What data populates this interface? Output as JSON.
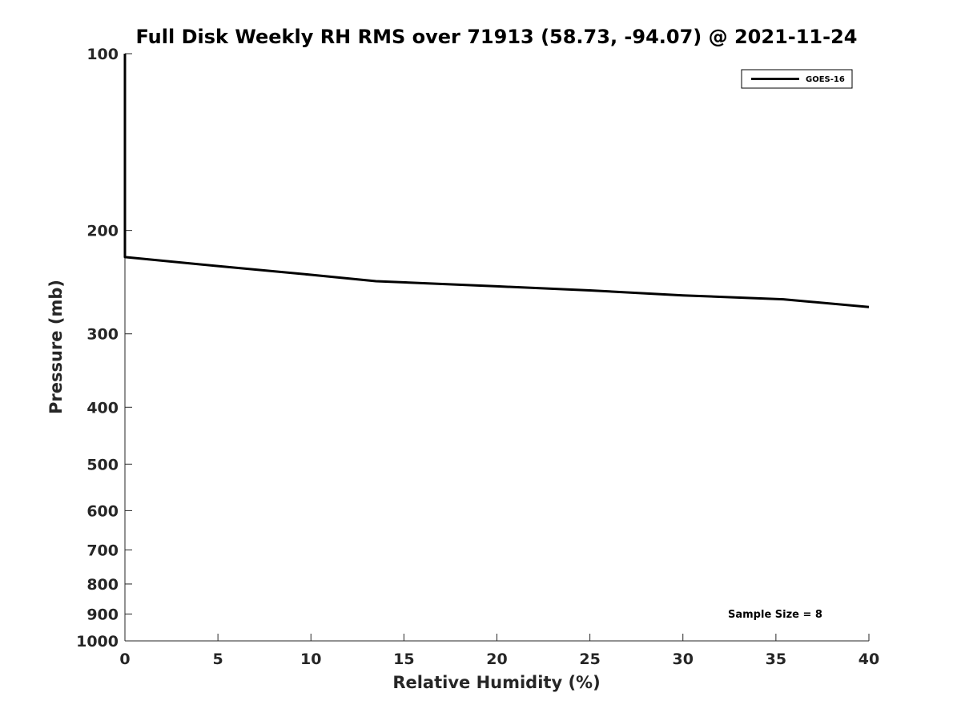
{
  "chart_data": {
    "type": "line",
    "title": "Full Disk Weekly RH RMS over 71913 (58.73, -94.07) @ 2021-11-24",
    "xlabel": "Relative Humidity (%)",
    "ylabel": "Pressure (mb)",
    "xlim": [
      0,
      40
    ],
    "ylim": [
      100,
      1000
    ],
    "y_scale": "log",
    "y_reversed": true,
    "grid": false,
    "legend_position": "top-right",
    "x_ticks": [
      0,
      5,
      10,
      15,
      20,
      25,
      30,
      35,
      40
    ],
    "y_ticks": [
      100,
      200,
      300,
      400,
      500,
      600,
      700,
      800,
      900,
      1000
    ],
    "series": [
      {
        "name": "GOES-16",
        "color": "#000000",
        "points": [
          {
            "x": 0.0,
            "y": 100
          },
          {
            "x": 0.0,
            "y": 150
          },
          {
            "x": 0.0,
            "y": 200
          },
          {
            "x": 0.0,
            "y": 222
          },
          {
            "x": 5.0,
            "y": 230
          },
          {
            "x": 10.0,
            "y": 238
          },
          {
            "x": 13.5,
            "y": 244
          },
          {
            "x": 20.0,
            "y": 249
          },
          {
            "x": 25.0,
            "y": 253
          },
          {
            "x": 30.0,
            "y": 258
          },
          {
            "x": 35.4,
            "y": 262
          },
          {
            "x": 40.0,
            "y": 270
          }
        ]
      }
    ],
    "annotation": "Sample Size = 8"
  }
}
